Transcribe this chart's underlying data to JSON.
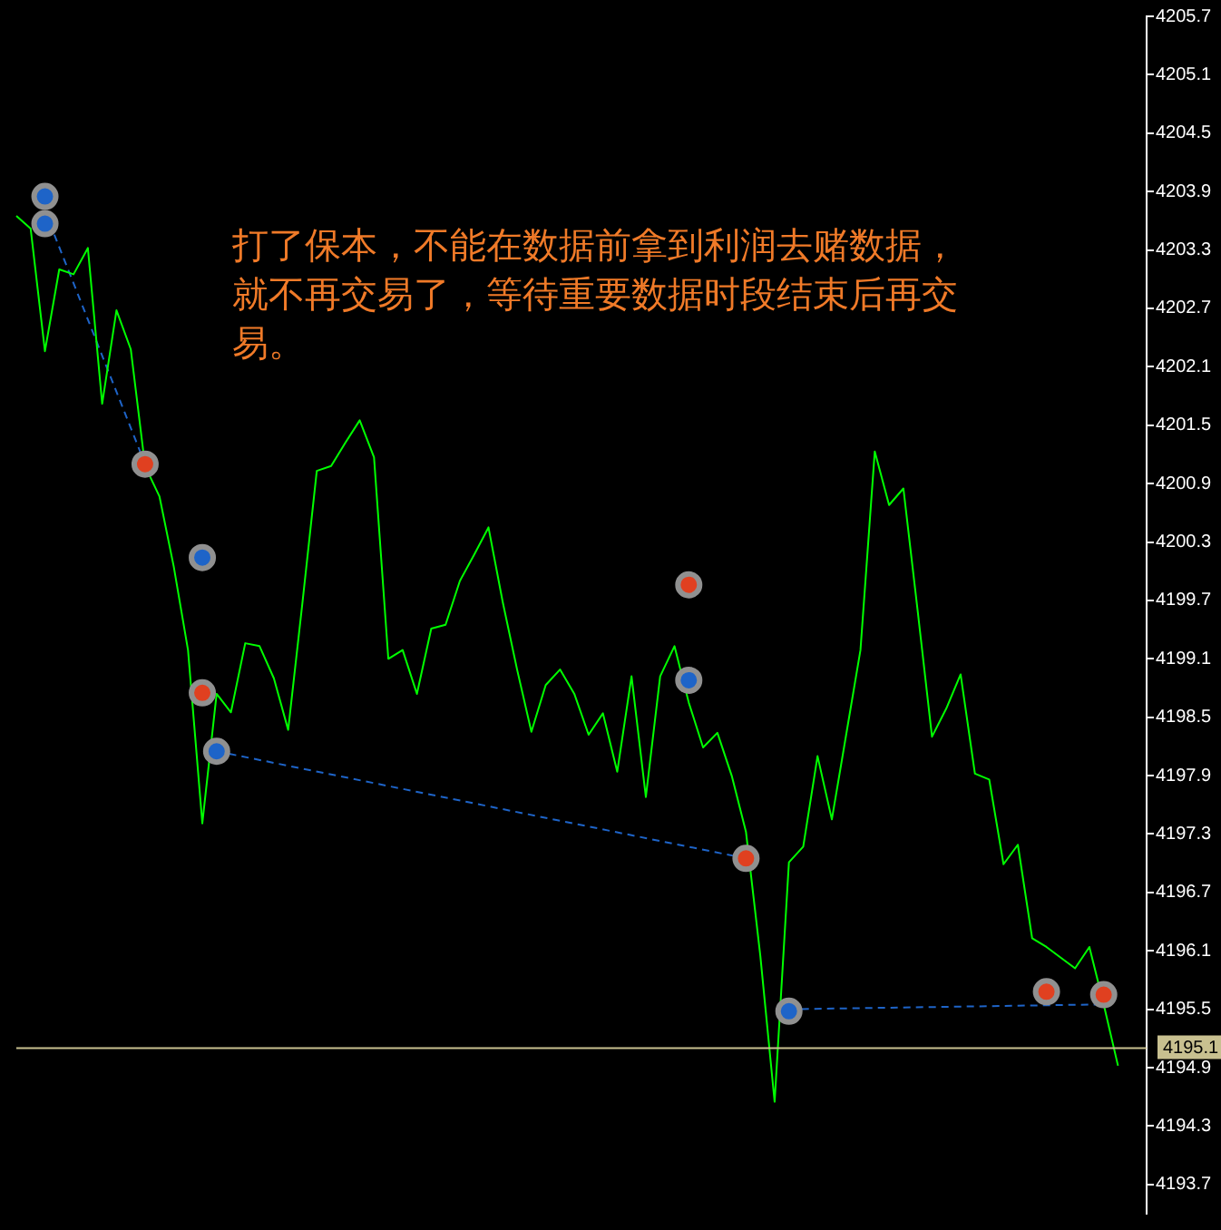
{
  "chart_data": {
    "type": "line",
    "annotations": [
      "打了保本，不能在数据前拿到利润去赌数据，就不再交易了，等待重要数据时段结束后再交易。"
    ],
    "categories": [
      null,
      null,
      null,
      null,
      null,
      null,
      null,
      null,
      null,
      null,
      null,
      null,
      null,
      null,
      null,
      null,
      null,
      null,
      null,
      null,
      null,
      null,
      null,
      null,
      null,
      null,
      null,
      null,
      null,
      null,
      null,
      null,
      null,
      null,
      null,
      null,
      null,
      null,
      null,
      null,
      null,
      null,
      null,
      null,
      null,
      null,
      null,
      null,
      null,
      null,
      null,
      null,
      null,
      null,
      null,
      null,
      null,
      null,
      null,
      null,
      null,
      null,
      null,
      null,
      null,
      null,
      null,
      null,
      null,
      null,
      null,
      null,
      null,
      null,
      null,
      null,
      null,
      null,
      null,
      null
    ],
    "series": [
      {
        "color": "#00ff00",
        "marker": "none",
        "line_style": "solid",
        "values": [
          4203.65,
          4203.52,
          4202.26,
          4203.1,
          4203.05,
          4203.32,
          4201.72,
          4202.68,
          4202.28,
          4201.08,
          4200.77,
          4200.05,
          4199.19,
          4197.41,
          4198.74,
          4198.55,
          4199.26,
          4199.23,
          4198.9,
          4198.37,
          4199.68,
          4201.03,
          4201.08,
          4201.32,
          4201.55,
          4201.17,
          4199.1,
          4199.19,
          4198.74,
          4199.41,
          4199.45,
          4199.9,
          4200.17,
          4200.45,
          4199.68,
          4198.99,
          4198.35,
          4198.83,
          4198.99,
          4198.74,
          4198.32,
          4198.54,
          4197.94,
          4198.92,
          4197.68,
          4198.92,
          4199.23,
          4198.65,
          4198.19,
          4198.34,
          4197.9,
          4197.32,
          4196.05,
          4194.55,
          4197.01,
          4197.17,
          4198.1,
          4197.45,
          4198.32,
          4199.19,
          4201.23,
          4200.68,
          4200.85,
          4199.59,
          4198.3,
          4198.59,
          4198.94,
          4197.92,
          4197.86,
          4196.99,
          4197.19,
          4196.23,
          4196.14,
          4196.03,
          4195.92,
          4196.14,
          4195.55,
          4194.92,
          null,
          null
        ]
      },
      {
        "type": "line",
        "color": "#1e64c8",
        "marker": "none",
        "line_style": "dashed",
        "values": [
          null,
          null,
          4203.7,
          null,
          null,
          null,
          null,
          null,
          null,
          4201.1,
          null,
          null,
          null,
          null,
          null,
          null,
          null,
          null,
          null,
          null,
          null,
          null,
          null,
          null,
          null,
          null,
          null,
          null,
          null,
          null,
          null,
          null,
          null,
          null,
          null,
          null,
          null,
          null,
          null,
          null,
          null,
          null,
          null,
          null,
          null,
          null,
          null,
          null,
          null,
          null,
          null,
          null,
          null,
          null,
          null,
          null,
          null,
          null,
          null,
          null,
          null,
          null,
          null,
          null,
          null,
          null,
          null,
          null,
          null,
          null,
          null,
          null,
          null,
          null,
          null,
          null,
          null,
          null,
          null,
          null
        ]
      },
      {
        "type": "line",
        "color": "#1e64c8",
        "marker": "none",
        "line_style": "dashed",
        "values": [
          null,
          null,
          null,
          null,
          null,
          null,
          null,
          null,
          null,
          null,
          null,
          null,
          null,
          null,
          4198.15,
          null,
          null,
          null,
          null,
          null,
          null,
          null,
          null,
          null,
          null,
          null,
          null,
          null,
          null,
          null,
          null,
          null,
          null,
          null,
          null,
          null,
          null,
          null,
          null,
          null,
          null,
          null,
          null,
          null,
          null,
          null,
          null,
          null,
          null,
          null,
          null,
          4197.05,
          null,
          null,
          null,
          null,
          null,
          null,
          null,
          null,
          null,
          null,
          null,
          null,
          null,
          null,
          null,
          null,
          null,
          null,
          null,
          null,
          null,
          null,
          null,
          null,
          null,
          null,
          null,
          null
        ]
      },
      {
        "type": "line",
        "color": "#1e64c8",
        "marker": "none",
        "line_style": "dashed",
        "values": [
          null,
          null,
          null,
          null,
          null,
          null,
          null,
          null,
          null,
          null,
          null,
          null,
          null,
          null,
          null,
          null,
          null,
          null,
          null,
          null,
          null,
          null,
          null,
          null,
          null,
          null,
          null,
          null,
          null,
          null,
          null,
          null,
          null,
          null,
          null,
          null,
          null,
          null,
          null,
          null,
          null,
          null,
          null,
          null,
          null,
          null,
          null,
          null,
          null,
          null,
          null,
          null,
          null,
          null,
          4195.5,
          null,
          null,
          null,
          null,
          null,
          null,
          null,
          null,
          null,
          null,
          null,
          null,
          null,
          null,
          null,
          null,
          null,
          null,
          null,
          null,
          null,
          4195.55,
          null,
          null,
          null
        ]
      },
      {
        "type": "scatter",
        "color": "#1e64c8",
        "marker": "circle",
        "values": [
          null,
          null,
          4203.85,
          null,
          null,
          null,
          null,
          null,
          null,
          null,
          null,
          null,
          null,
          4200.14,
          4198.15,
          null,
          null,
          null,
          null,
          null,
          null,
          null,
          null,
          null,
          null,
          null,
          null,
          null,
          null,
          null,
          null,
          null,
          null,
          null,
          null,
          null,
          null,
          null,
          null,
          null,
          null,
          null,
          null,
          null,
          null,
          null,
          null,
          4198.88,
          null,
          null,
          null,
          null,
          null,
          null,
          4195.48,
          null,
          null,
          null,
          null,
          null,
          null,
          null,
          null,
          null,
          null,
          null,
          null,
          null,
          null,
          null,
          null,
          null,
          null,
          null,
          null,
          null,
          null,
          null,
          null,
          null
        ]
      },
      {
        "type": "scatter",
        "color": "#1e64c8",
        "marker": "circle",
        "values": [
          null,
          null,
          4203.57,
          null,
          null,
          null,
          null,
          null,
          null,
          null,
          null,
          null,
          null,
          null,
          null,
          null,
          null,
          null,
          null,
          null,
          null,
          null,
          null,
          null,
          null,
          null,
          null,
          null,
          null,
          null,
          null,
          null,
          null,
          null,
          null,
          null,
          null,
          null,
          null,
          null,
          null,
          null,
          null,
          null,
          null,
          null,
          null,
          null,
          null,
          null,
          null,
          null,
          null,
          null,
          null,
          null,
          null,
          null,
          null,
          null,
          null,
          null,
          null,
          null,
          null,
          null,
          null,
          null,
          null,
          null,
          null,
          null,
          null,
          null,
          null,
          null,
          null,
          null,
          null,
          null
        ]
      },
      {
        "type": "scatter",
        "color": "#e04020",
        "marker": "circle",
        "values": [
          null,
          null,
          null,
          null,
          null,
          null,
          null,
          null,
          null,
          4201.1,
          null,
          null,
          null,
          4198.75,
          null,
          null,
          null,
          null,
          null,
          null,
          null,
          null,
          null,
          null,
          null,
          null,
          null,
          null,
          null,
          null,
          null,
          null,
          null,
          null,
          null,
          null,
          null,
          null,
          null,
          null,
          null,
          null,
          null,
          null,
          null,
          null,
          null,
          4199.86,
          null,
          null,
          null,
          4197.05,
          null,
          null,
          null,
          null,
          null,
          null,
          null,
          null,
          null,
          null,
          null,
          null,
          null,
          null,
          null,
          null,
          null,
          null,
          null,
          null,
          4195.68,
          null,
          null,
          null,
          4195.65,
          null,
          null,
          null
        ]
      }
    ],
    "ylim": [
      4193.4,
      4205.7
    ],
    "yticks": [
      4193.7,
      4194.3,
      4194.9,
      4195.5,
      4196.1,
      4196.7,
      4197.3,
      4197.9,
      4198.5,
      4199.1,
      4199.7,
      4200.3,
      4200.9,
      4201.5,
      4202.1,
      4202.7,
      4203.3,
      4203.9,
      4204.5,
      4205.1,
      4205.7
    ],
    "ref_lines": [
      {
        "axis": "y",
        "value": 4195.1,
        "label": "4195.1",
        "color": "#c8c090"
      }
    ],
    "tick_labels": "y"
  }
}
